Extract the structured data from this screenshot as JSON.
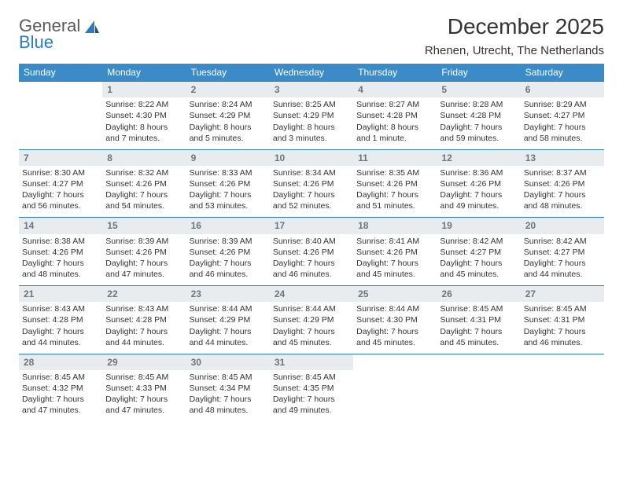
{
  "brand": {
    "part1": "General",
    "part2": "Blue"
  },
  "title": "December 2025",
  "location": "Rhenen, Utrecht, The Netherlands",
  "colors": {
    "header_bg": "#3b8bc8",
    "header_border": "#2d7bc0",
    "daynum_bg": "#e9ecef",
    "daynum_text": "#6c757d",
    "body_text": "#333333",
    "logo_gray": "#5a5a5a",
    "logo_blue": "#2d7bc0"
  },
  "weekdays": [
    "Sunday",
    "Monday",
    "Tuesday",
    "Wednesday",
    "Thursday",
    "Friday",
    "Saturday"
  ],
  "weeks": [
    {
      "nums": [
        "",
        "1",
        "2",
        "3",
        "4",
        "5",
        "6"
      ],
      "cells": [
        {
          "blank": true
        },
        {
          "sr": "Sunrise: 8:22 AM",
          "ss": "Sunset: 4:30 PM",
          "dl": "Daylight: 8 hours and 7 minutes."
        },
        {
          "sr": "Sunrise: 8:24 AM",
          "ss": "Sunset: 4:29 PM",
          "dl": "Daylight: 8 hours and 5 minutes."
        },
        {
          "sr": "Sunrise: 8:25 AM",
          "ss": "Sunset: 4:29 PM",
          "dl": "Daylight: 8 hours and 3 minutes."
        },
        {
          "sr": "Sunrise: 8:27 AM",
          "ss": "Sunset: 4:28 PM",
          "dl": "Daylight: 8 hours and 1 minute."
        },
        {
          "sr": "Sunrise: 8:28 AM",
          "ss": "Sunset: 4:28 PM",
          "dl": "Daylight: 7 hours and 59 minutes."
        },
        {
          "sr": "Sunrise: 8:29 AM",
          "ss": "Sunset: 4:27 PM",
          "dl": "Daylight: 7 hours and 58 minutes."
        }
      ]
    },
    {
      "nums": [
        "7",
        "8",
        "9",
        "10",
        "11",
        "12",
        "13"
      ],
      "cells": [
        {
          "sr": "Sunrise: 8:30 AM",
          "ss": "Sunset: 4:27 PM",
          "dl": "Daylight: 7 hours and 56 minutes."
        },
        {
          "sr": "Sunrise: 8:32 AM",
          "ss": "Sunset: 4:26 PM",
          "dl": "Daylight: 7 hours and 54 minutes."
        },
        {
          "sr": "Sunrise: 8:33 AM",
          "ss": "Sunset: 4:26 PM",
          "dl": "Daylight: 7 hours and 53 minutes."
        },
        {
          "sr": "Sunrise: 8:34 AM",
          "ss": "Sunset: 4:26 PM",
          "dl": "Daylight: 7 hours and 52 minutes."
        },
        {
          "sr": "Sunrise: 8:35 AM",
          "ss": "Sunset: 4:26 PM",
          "dl": "Daylight: 7 hours and 51 minutes."
        },
        {
          "sr": "Sunrise: 8:36 AM",
          "ss": "Sunset: 4:26 PM",
          "dl": "Daylight: 7 hours and 49 minutes."
        },
        {
          "sr": "Sunrise: 8:37 AM",
          "ss": "Sunset: 4:26 PM",
          "dl": "Daylight: 7 hours and 48 minutes."
        }
      ]
    },
    {
      "nums": [
        "14",
        "15",
        "16",
        "17",
        "18",
        "19",
        "20"
      ],
      "cells": [
        {
          "sr": "Sunrise: 8:38 AM",
          "ss": "Sunset: 4:26 PM",
          "dl": "Daylight: 7 hours and 48 minutes."
        },
        {
          "sr": "Sunrise: 8:39 AM",
          "ss": "Sunset: 4:26 PM",
          "dl": "Daylight: 7 hours and 47 minutes."
        },
        {
          "sr": "Sunrise: 8:39 AM",
          "ss": "Sunset: 4:26 PM",
          "dl": "Daylight: 7 hours and 46 minutes."
        },
        {
          "sr": "Sunrise: 8:40 AM",
          "ss": "Sunset: 4:26 PM",
          "dl": "Daylight: 7 hours and 46 minutes."
        },
        {
          "sr": "Sunrise: 8:41 AM",
          "ss": "Sunset: 4:26 PM",
          "dl": "Daylight: 7 hours and 45 minutes."
        },
        {
          "sr": "Sunrise: 8:42 AM",
          "ss": "Sunset: 4:27 PM",
          "dl": "Daylight: 7 hours and 45 minutes."
        },
        {
          "sr": "Sunrise: 8:42 AM",
          "ss": "Sunset: 4:27 PM",
          "dl": "Daylight: 7 hours and 44 minutes."
        }
      ]
    },
    {
      "nums": [
        "21",
        "22",
        "23",
        "24",
        "25",
        "26",
        "27"
      ],
      "cells": [
        {
          "sr": "Sunrise: 8:43 AM",
          "ss": "Sunset: 4:28 PM",
          "dl": "Daylight: 7 hours and 44 minutes."
        },
        {
          "sr": "Sunrise: 8:43 AM",
          "ss": "Sunset: 4:28 PM",
          "dl": "Daylight: 7 hours and 44 minutes."
        },
        {
          "sr": "Sunrise: 8:44 AM",
          "ss": "Sunset: 4:29 PM",
          "dl": "Daylight: 7 hours and 44 minutes."
        },
        {
          "sr": "Sunrise: 8:44 AM",
          "ss": "Sunset: 4:29 PM",
          "dl": "Daylight: 7 hours and 45 minutes."
        },
        {
          "sr": "Sunrise: 8:44 AM",
          "ss": "Sunset: 4:30 PM",
          "dl": "Daylight: 7 hours and 45 minutes."
        },
        {
          "sr": "Sunrise: 8:45 AM",
          "ss": "Sunset: 4:31 PM",
          "dl": "Daylight: 7 hours and 45 minutes."
        },
        {
          "sr": "Sunrise: 8:45 AM",
          "ss": "Sunset: 4:31 PM",
          "dl": "Daylight: 7 hours and 46 minutes."
        }
      ]
    },
    {
      "nums": [
        "28",
        "29",
        "30",
        "31",
        "",
        "",
        ""
      ],
      "cells": [
        {
          "sr": "Sunrise: 8:45 AM",
          "ss": "Sunset: 4:32 PM",
          "dl": "Daylight: 7 hours and 47 minutes."
        },
        {
          "sr": "Sunrise: 8:45 AM",
          "ss": "Sunset: 4:33 PM",
          "dl": "Daylight: 7 hours and 47 minutes."
        },
        {
          "sr": "Sunrise: 8:45 AM",
          "ss": "Sunset: 4:34 PM",
          "dl": "Daylight: 7 hours and 48 minutes."
        },
        {
          "sr": "Sunrise: 8:45 AM",
          "ss": "Sunset: 4:35 PM",
          "dl": "Daylight: 7 hours and 49 minutes."
        },
        {
          "blank": true
        },
        {
          "blank": true
        },
        {
          "blank": true
        }
      ]
    }
  ]
}
